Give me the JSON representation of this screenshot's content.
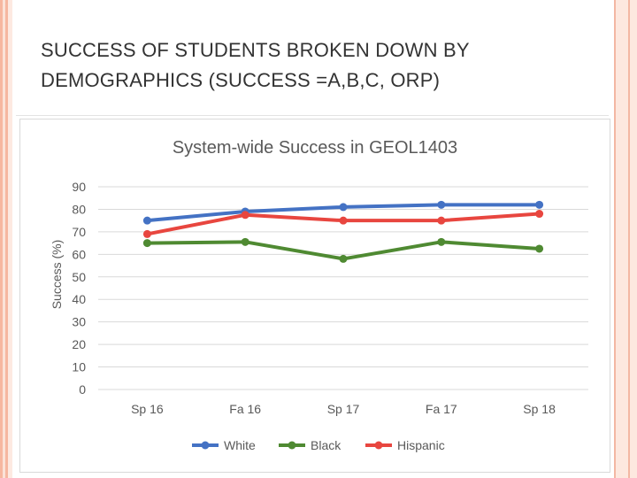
{
  "slide": {
    "title_line1": "SUCCESS OF STUDENTS BROKEN DOWN BY",
    "title_line2": "DEMOGRAPHICS (SUCCESS =A,B,C, ORP)"
  },
  "chart_data": {
    "type": "line",
    "title": "System-wide Success in GEOL1403",
    "xlabel": "",
    "ylabel": "Success (%)",
    "ylim": [
      0,
      90
    ],
    "yticks": [
      0,
      10,
      20,
      30,
      40,
      50,
      60,
      70,
      80,
      90
    ],
    "categories": [
      "Sp 16",
      "Fa 16",
      "Sp 17",
      "Fa 17",
      "Sp 18"
    ],
    "grid": true,
    "legend_position": "bottom",
    "series": [
      {
        "name": "White",
        "color": "#4472c4",
        "values": [
          75,
          79,
          81,
          82,
          82
        ]
      },
      {
        "name": "Black",
        "color": "#4f8a32",
        "values": [
          65,
          65.5,
          58,
          65.5,
          62.5
        ]
      },
      {
        "name": "Hispanic",
        "color": "#e8463f",
        "values": [
          69,
          77.5,
          75,
          75,
          78
        ]
      }
    ]
  }
}
